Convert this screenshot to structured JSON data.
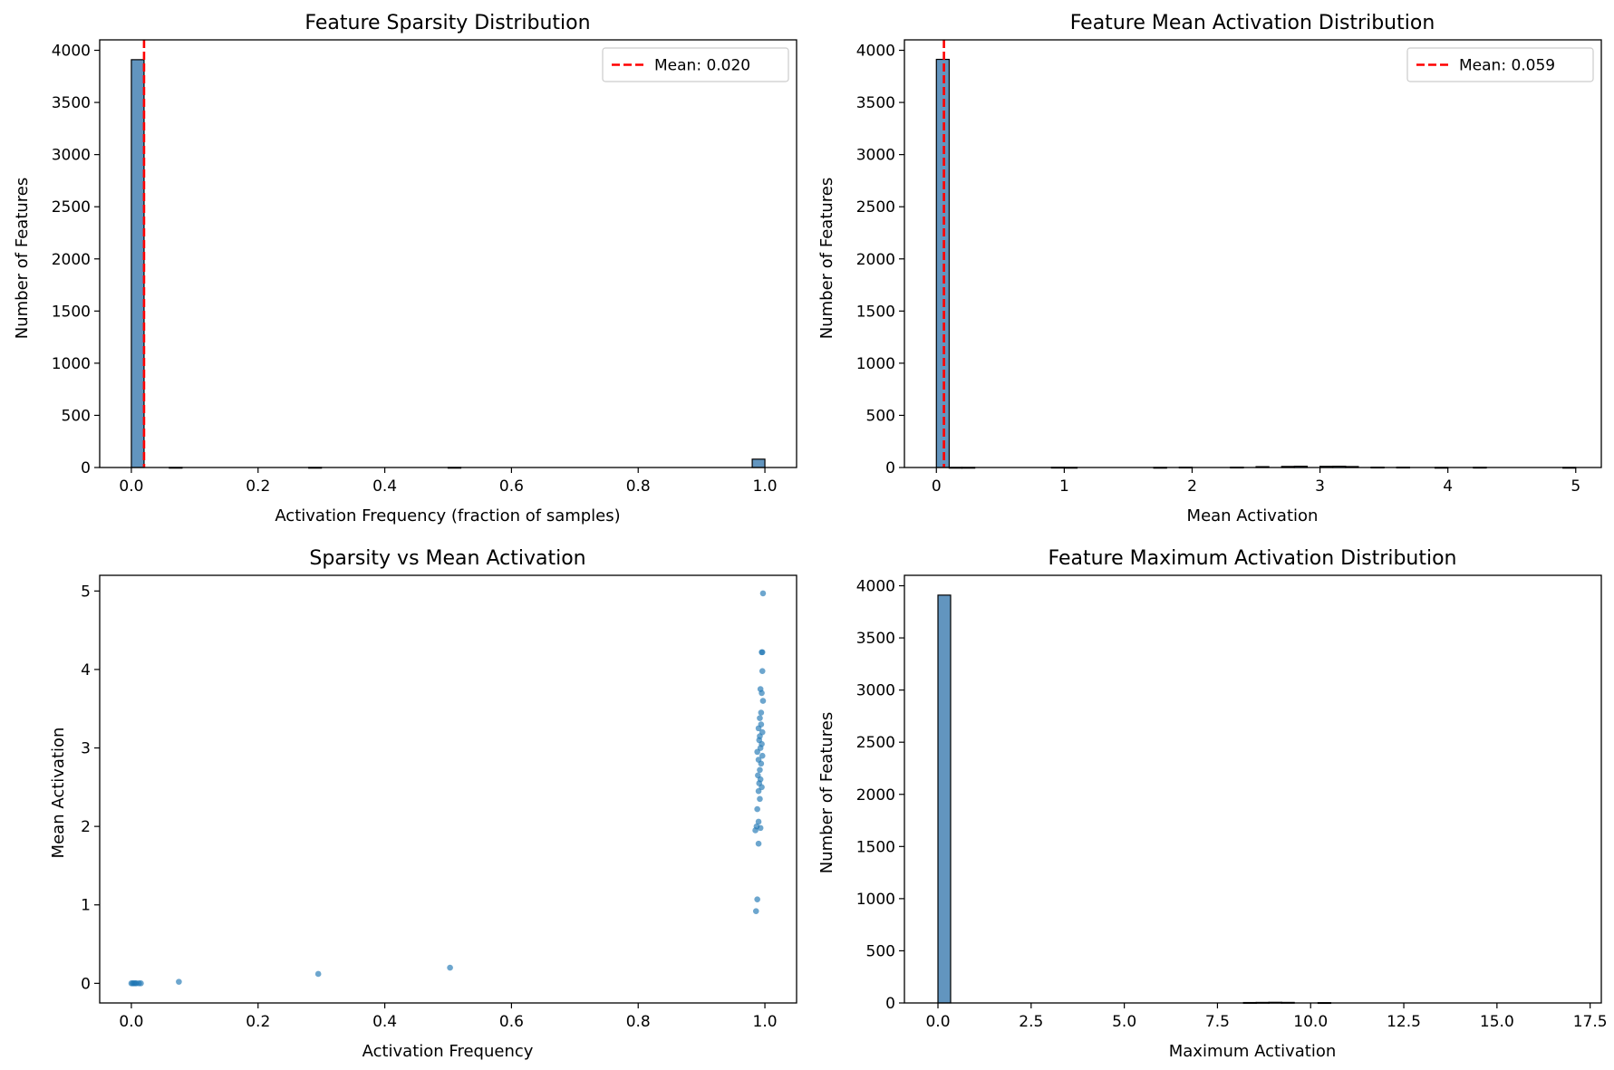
{
  "chart_data": [
    {
      "type": "bar",
      "title": "Feature Sparsity Distribution",
      "xlabel": "Activation Frequency (fraction of samples)",
      "ylabel": "Number of Features",
      "xlim": [
        -0.05,
        1.05
      ],
      "ylim": [
        0,
        4100
      ],
      "xticks": [
        "0.0",
        "0.2",
        "0.4",
        "0.6",
        "0.8",
        "1.0"
      ],
      "xtick_values": [
        0,
        0.2,
        0.4,
        0.6,
        0.8,
        1.0
      ],
      "yticks": [
        "0",
        "500",
        "1000",
        "1500",
        "2000",
        "2500",
        "3000",
        "3500",
        "4000"
      ],
      "ytick_values": [
        0,
        500,
        1000,
        1500,
        2000,
        2500,
        3000,
        3500,
        4000
      ],
      "bin_width": 0.02,
      "bins": [
        {
          "x": 0.0,
          "count": 3910
        },
        {
          "x": 0.06,
          "count": 1
        },
        {
          "x": 0.28,
          "count": 1
        },
        {
          "x": 0.5,
          "count": 1
        },
        {
          "x": 0.98,
          "count": 80
        }
      ],
      "vline": {
        "value": 0.02,
        "label": "Mean: 0.020",
        "color": "#ff0000"
      },
      "legend": "top-right",
      "bar_color": "#4682b4"
    },
    {
      "type": "bar",
      "title": "Feature Mean Activation Distribution",
      "xlabel": "Mean Activation",
      "ylabel": "Number of Features",
      "xlim": [
        -0.25,
        5.2
      ],
      "ylim": [
        0,
        4100
      ],
      "xticks": [
        "0",
        "1",
        "2",
        "3",
        "4",
        "5"
      ],
      "xtick_values": [
        0,
        1,
        2,
        3,
        4,
        5
      ],
      "yticks": [
        "0",
        "500",
        "1000",
        "1500",
        "2000",
        "2500",
        "3000",
        "3500",
        "4000"
      ],
      "ytick_values": [
        0,
        500,
        1000,
        1500,
        2000,
        2500,
        3000,
        3500,
        4000
      ],
      "bin_width": 0.1,
      "bins": [
        {
          "x": 0.0,
          "count": 3913
        },
        {
          "x": 0.1,
          "count": 1
        },
        {
          "x": 0.2,
          "count": 1
        },
        {
          "x": 0.9,
          "count": 2
        },
        {
          "x": 1.0,
          "count": 1
        },
        {
          "x": 1.7,
          "count": 1
        },
        {
          "x": 1.9,
          "count": 3
        },
        {
          "x": 2.3,
          "count": 3
        },
        {
          "x": 2.5,
          "count": 8
        },
        {
          "x": 2.7,
          "count": 10
        },
        {
          "x": 2.8,
          "count": 12
        },
        {
          "x": 3.0,
          "count": 11
        },
        {
          "x": 3.1,
          "count": 12
        },
        {
          "x": 3.2,
          "count": 9
        },
        {
          "x": 3.4,
          "count": 3
        },
        {
          "x": 3.6,
          "count": 3
        },
        {
          "x": 3.9,
          "count": 1
        },
        {
          "x": 4.2,
          "count": 2
        },
        {
          "x": 4.9,
          "count": 1
        }
      ],
      "vline": {
        "value": 0.059,
        "label": "Mean: 0.059",
        "color": "#ff0000"
      },
      "legend": "top-right",
      "bar_color": "#4682b4"
    },
    {
      "type": "scatter",
      "title": "Sparsity vs Mean Activation",
      "xlabel": "Activation Frequency",
      "ylabel": "Mean Activation",
      "xlim": [
        -0.05,
        1.05
      ],
      "ylim": [
        -0.25,
        5.2
      ],
      "xticks": [
        "0.0",
        "0.2",
        "0.4",
        "0.6",
        "0.8",
        "1.0"
      ],
      "xtick_values": [
        0,
        0.2,
        0.4,
        0.6,
        0.8,
        1.0
      ],
      "yticks": [
        "0",
        "1",
        "2",
        "3",
        "4",
        "5"
      ],
      "ytick_values": [
        0,
        1,
        2,
        3,
        4,
        5
      ],
      "point_color": "#1f77b4",
      "points": [
        [
          0.0,
          0.0
        ],
        [
          0.002,
          0.0
        ],
        [
          0.004,
          0.0
        ],
        [
          0.006,
          0.0
        ],
        [
          0.008,
          0.0
        ],
        [
          0.012,
          0.0
        ],
        [
          0.015,
          0.0
        ],
        [
          0.075,
          0.02
        ],
        [
          0.295,
          0.12
        ],
        [
          0.503,
          0.2
        ],
        [
          0.986,
          0.92
        ],
        [
          0.988,
          1.07
        ],
        [
          0.99,
          1.78
        ],
        [
          0.985,
          1.95
        ],
        [
          0.987,
          2.0
        ],
        [
          0.993,
          1.98
        ],
        [
          0.99,
          2.06
        ],
        [
          0.988,
          2.22
        ],
        [
          0.992,
          2.35
        ],
        [
          0.99,
          2.45
        ],
        [
          0.995,
          2.5
        ],
        [
          0.991,
          2.55
        ],
        [
          0.993,
          2.6
        ],
        [
          0.989,
          2.65
        ],
        [
          0.992,
          2.72
        ],
        [
          0.994,
          2.8
        ],
        [
          0.99,
          2.85
        ],
        [
          0.996,
          2.9
        ],
        [
          0.988,
          2.95
        ],
        [
          0.993,
          3.0
        ],
        [
          0.995,
          3.05
        ],
        [
          0.991,
          3.1
        ],
        [
          0.992,
          3.15
        ],
        [
          0.996,
          3.2
        ],
        [
          0.99,
          3.25
        ],
        [
          0.994,
          3.3
        ],
        [
          0.992,
          3.38
        ],
        [
          0.994,
          3.45
        ],
        [
          0.997,
          3.6
        ],
        [
          0.995,
          3.7
        ],
        [
          0.993,
          3.75
        ],
        [
          0.996,
          3.98
        ],
        [
          0.995,
          4.22
        ],
        [
          0.996,
          4.22
        ],
        [
          0.997,
          4.97
        ]
      ]
    },
    {
      "type": "bar",
      "title": "Feature Maximum Activation Distribution",
      "xlabel": "Maximum Activation",
      "ylabel": "Number of Features",
      "xlim": [
        -0.9,
        17.8
      ],
      "ylim": [
        0,
        4100
      ],
      "xticks": [
        "0.0",
        "2.5",
        "5.0",
        "7.5",
        "10.0",
        "12.5",
        "15.0",
        "17.5"
      ],
      "xtick_values": [
        0,
        2.5,
        5,
        7.5,
        10,
        12.5,
        15,
        17.5
      ],
      "yticks": [
        "0",
        "500",
        "1000",
        "1500",
        "2000",
        "2500",
        "3000",
        "3500",
        "4000"
      ],
      "ytick_values": [
        0,
        500,
        1000,
        1500,
        2000,
        2500,
        3000,
        3500,
        4000
      ],
      "bin_width": 0.34,
      "bins": [
        {
          "x": 0.0,
          "count": 3910
        },
        {
          "x": 8.2,
          "count": 4
        },
        {
          "x": 8.54,
          "count": 5
        },
        {
          "x": 8.88,
          "count": 6
        },
        {
          "x": 9.22,
          "count": 5
        },
        {
          "x": 10.2,
          "count": 3
        }
      ],
      "bar_color": "#4682b4"
    }
  ]
}
